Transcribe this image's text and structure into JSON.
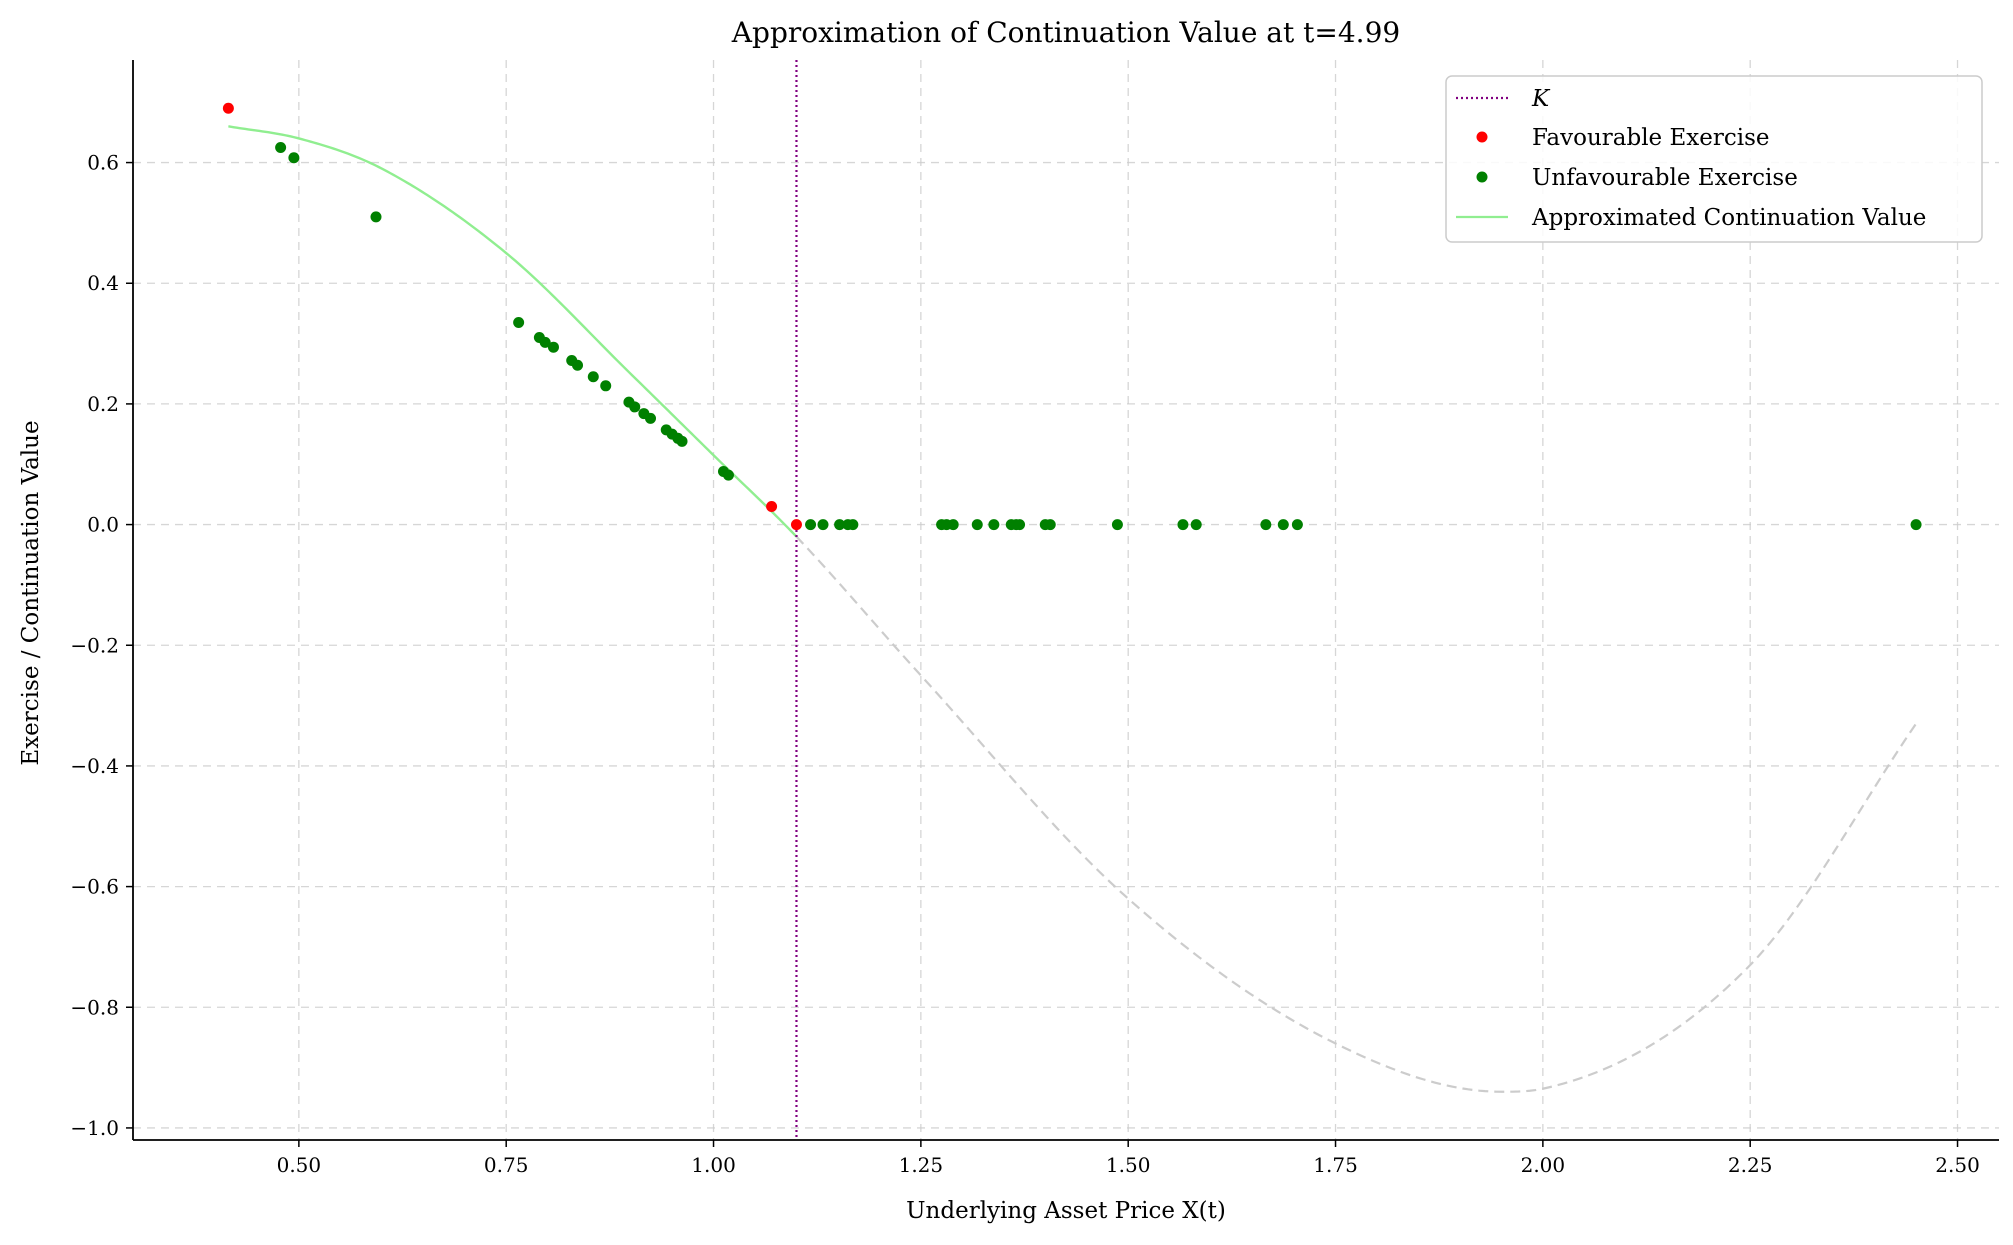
{
  "chart_data": {
    "type": "scatter",
    "title": "Approximation of Continuation Value at t=4.99",
    "xlabel": "Underlying Asset Price X(t)",
    "ylabel": "Exercise / Continuation Value",
    "xlim": [
      0.3,
      2.55
    ],
    "ylim": [
      -1.02,
      0.77
    ],
    "x_ticks": [
      0.5,
      0.75,
      1.0,
      1.25,
      1.5,
      1.75,
      2.0,
      2.25,
      2.5
    ],
    "x_tick_labels": [
      "0.50",
      "0.75",
      "1.00",
      "1.25",
      "1.50",
      "1.75",
      "2.00",
      "2.25",
      "2.50"
    ],
    "y_ticks": [
      0.6,
      0.4,
      0.2,
      0.0,
      -0.2,
      -0.4,
      -0.6,
      -0.8,
      -1.0
    ],
    "y_tick_labels": [
      "0.6",
      "0.4",
      "0.2",
      "0.0",
      "−0.2",
      "−0.4",
      "−0.6",
      "−0.8",
      "−1.0"
    ],
    "grid": true,
    "legend_position": "top-right",
    "strike": {
      "name": "K",
      "x": 1.1,
      "color": "#800080",
      "style": "dotted"
    },
    "series": [
      {
        "name": "Favourable Exercise",
        "kind": "scatter",
        "color": "#ff0000",
        "points": [
          [
            0.415,
            0.69
          ],
          [
            1.07,
            0.03
          ],
          [
            1.1,
            0.0
          ]
        ]
      },
      {
        "name": "Unfavourable Exercise",
        "kind": "scatter",
        "color": "#008000",
        "points": [
          [
            0.478,
            0.625
          ],
          [
            0.494,
            0.608
          ],
          [
            0.593,
            0.51
          ],
          [
            0.765,
            0.335
          ],
          [
            0.79,
            0.31
          ],
          [
            0.797,
            0.302
          ],
          [
            0.807,
            0.294
          ],
          [
            0.829,
            0.272
          ],
          [
            0.836,
            0.264
          ],
          [
            0.855,
            0.245
          ],
          [
            0.87,
            0.23
          ],
          [
            0.898,
            0.203
          ],
          [
            0.905,
            0.195
          ],
          [
            0.916,
            0.184
          ],
          [
            0.924,
            0.176
          ],
          [
            0.943,
            0.157
          ],
          [
            0.95,
            0.15
          ],
          [
            0.957,
            0.143
          ],
          [
            0.962,
            0.138
          ],
          [
            1.012,
            0.088
          ],
          [
            1.018,
            0.082
          ],
          [
            1.117,
            0.0
          ],
          [
            1.132,
            0.0
          ],
          [
            1.152,
            0.0
          ],
          [
            1.162,
            0.0
          ],
          [
            1.168,
            0.0
          ],
          [
            1.275,
            0.0
          ],
          [
            1.281,
            0.0
          ],
          [
            1.289,
            0.0
          ],
          [
            1.318,
            0.0
          ],
          [
            1.338,
            0.0
          ],
          [
            1.359,
            0.0
          ],
          [
            1.365,
            0.0
          ],
          [
            1.369,
            0.0
          ],
          [
            1.4,
            0.0
          ],
          [
            1.406,
            0.0
          ],
          [
            1.487,
            0.0
          ],
          [
            1.566,
            0.0
          ],
          [
            1.582,
            0.0
          ],
          [
            1.666,
            0.0
          ],
          [
            1.687,
            0.0
          ],
          [
            1.704,
            0.0
          ],
          [
            2.45,
            0.0
          ]
        ]
      },
      {
        "name": "Approximated Continuation Value",
        "kind": "line",
        "color": "#90ee90",
        "note_segment": "solid for x <= K, dashed grey for x > K",
        "extension_color": "#cccccc",
        "x_range": [
          0.415,
          2.45
        ],
        "key_points": [
          [
            0.415,
            0.66
          ],
          [
            0.5,
            0.64
          ],
          [
            0.6,
            0.59
          ],
          [
            0.75,
            0.45
          ],
          [
            0.9,
            0.25
          ],
          [
            1.0,
            0.115
          ],
          [
            1.1,
            -0.02
          ],
          [
            1.25,
            -0.25
          ],
          [
            1.5,
            -0.62
          ],
          [
            1.75,
            -0.86
          ],
          [
            1.95,
            -0.94
          ],
          [
            2.0,
            -0.935
          ],
          [
            2.25,
            -0.73
          ],
          [
            2.45,
            -0.33
          ]
        ]
      }
    ]
  }
}
